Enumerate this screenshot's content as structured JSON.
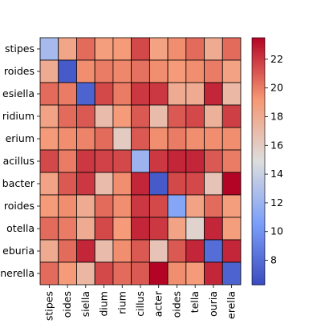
{
  "chart_data": {
    "type": "heatmap",
    "title": "",
    "xlabel": "",
    "ylabel": "",
    "row_labels": [
      "stipes",
      "roides",
      "esiella",
      "ridium",
      "erium",
      "acillus",
      "bacter",
      "roides",
      "otella",
      "eburia",
      "nerella"
    ],
    "col_labels": [
      "stipes",
      "oides",
      "siella",
      "dium",
      "rium",
      "cillus",
      "acter",
      "oides",
      "tella",
      "ouria",
      "erella"
    ],
    "matrix": [
      [
        12.5,
        18.3,
        20.5,
        18.8,
        19.0,
        21.5,
        18.6,
        19.5,
        20.5,
        18.0,
        20.5
      ],
      [
        18.0,
        7.0,
        19.5,
        20.0,
        19.7,
        20.3,
        19.5,
        19.0,
        19.5,
        20.0,
        18.6
      ],
      [
        20.5,
        20.0,
        7.5,
        21.5,
        20.0,
        22.0,
        22.0,
        18.0,
        18.0,
        22.5,
        17.2
      ],
      [
        18.5,
        20.5,
        21.0,
        17.0,
        19.0,
        21.0,
        17.0,
        21.0,
        21.5,
        17.7,
        21.8
      ],
      [
        19.0,
        19.5,
        19.8,
        20.5,
        16.0,
        21.0,
        19.5,
        20.0,
        19.5,
        19.5,
        19.5
      ],
      [
        21.5,
        20.0,
        22.0,
        21.7,
        21.5,
        12.0,
        22.0,
        22.5,
        22.5,
        21.0,
        20.0
      ],
      [
        18.5,
        21.0,
        22.0,
        17.0,
        19.5,
        22.5,
        7.0,
        21.5,
        21.5,
        16.5,
        24.0
      ],
      [
        19.0,
        19.5,
        18.0,
        20.5,
        19.5,
        22.0,
        21.5,
        11.0,
        18.5,
        20.5,
        18.8
      ],
      [
        20.5,
        20.0,
        18.0,
        21.5,
        19.0,
        22.5,
        22.0,
        18.5,
        15.5,
        22.5,
        18.8
      ],
      [
        18.0,
        20.5,
        22.5,
        17.0,
        19.5,
        21.0,
        16.5,
        21.0,
        22.5,
        8.0,
        22.5
      ],
      [
        20.5,
        19.0,
        17.3,
        21.5,
        20.5,
        21.0,
        23.5,
        19.5,
        19.0,
        22.5,
        7.5
      ]
    ],
    "vmin": 6.3,
    "vmax": 23.5,
    "colormap": "coolwarm",
    "colorbar_ticks": [
      8,
      10,
      12,
      14,
      16,
      18,
      20,
      22
    ],
    "cell_border_color": "#000000"
  }
}
